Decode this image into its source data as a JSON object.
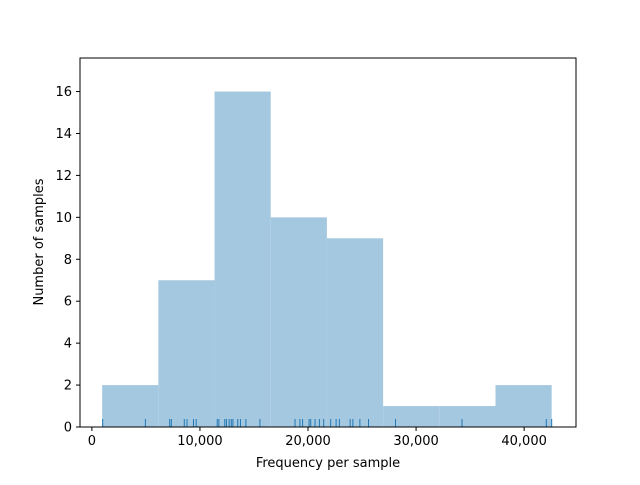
{
  "chart_data": {
    "type": "bar",
    "subtype": "histogram-with-rug",
    "xlabel": "Frequency per sample",
    "ylabel": "Number of samples",
    "xlim": [
      -1100,
      44800
    ],
    "ylim": [
      0,
      17.6
    ],
    "xticks": [
      0,
      10000,
      20000,
      30000,
      40000
    ],
    "xtick_labels": [
      "0",
      "10,000",
      "20,000",
      "30,000",
      "40,000"
    ],
    "yticks": [
      0,
      2,
      4,
      6,
      8,
      10,
      12,
      14,
      16
    ],
    "ytick_labels": [
      "0",
      "2",
      "4",
      "6",
      "8",
      "10",
      "12",
      "14",
      "16"
    ],
    "bins": [
      {
        "x0": 950,
        "x1": 6150,
        "count": 2
      },
      {
        "x0": 6150,
        "x1": 11350,
        "count": 7
      },
      {
        "x0": 11350,
        "x1": 16550,
        "count": 16
      },
      {
        "x0": 16550,
        "x1": 21750,
        "count": 10
      },
      {
        "x0": 21750,
        "x1": 26950,
        "count": 9
      },
      {
        "x0": 26950,
        "x1": 32150,
        "count": 1
      },
      {
        "x0": 32150,
        "x1": 37350,
        "count": 1
      },
      {
        "x0": 37350,
        "x1": 42550,
        "count": 2
      }
    ],
    "rug": [
      1000,
      4950,
      7200,
      7350,
      8550,
      8800,
      9400,
      9650,
      11600,
      11750,
      12300,
      12450,
      12700,
      12900,
      13050,
      13500,
      13750,
      14250,
      15550,
      18800,
      19250,
      19500,
      20100,
      20250,
      20650,
      21050,
      21450,
      22100,
      22600,
      22900,
      23900,
      24150,
      24800,
      25600,
      28100,
      34250,
      42050,
      42550
    ],
    "grid": false,
    "colors": {
      "bar": "#a5c8e1",
      "rug": "#1f77b4",
      "axis": "#000000"
    }
  }
}
